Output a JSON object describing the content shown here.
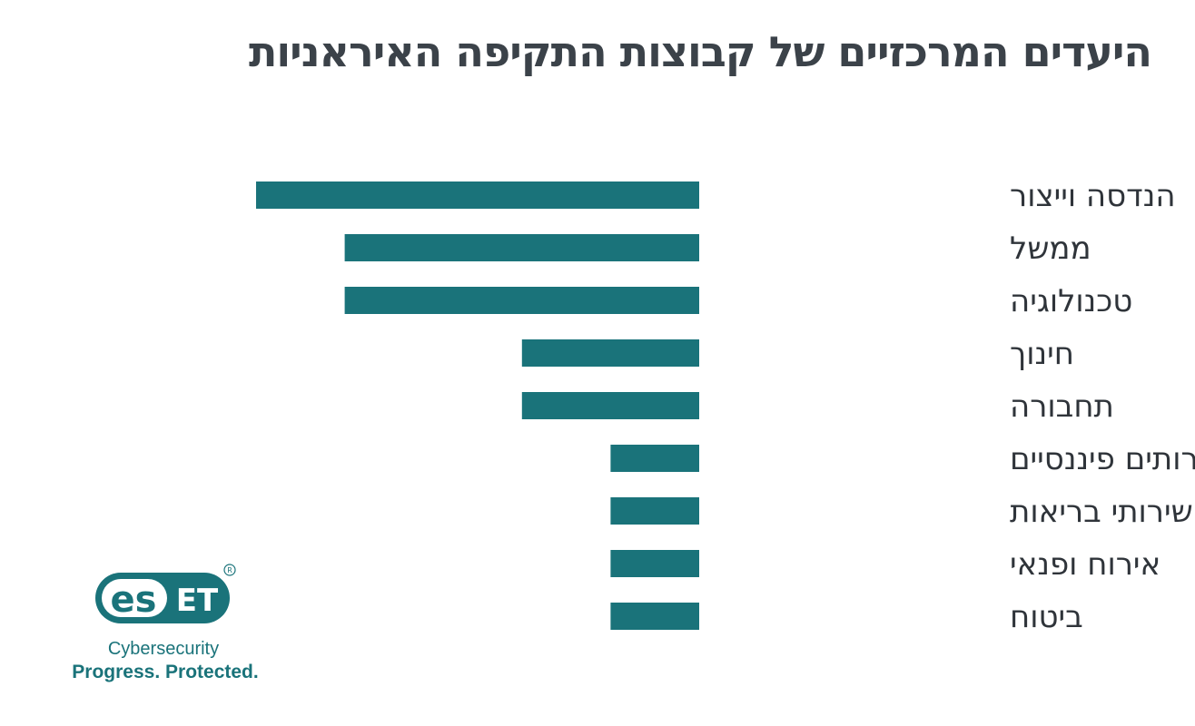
{
  "chart_data": {
    "type": "bar",
    "orientation": "horizontal",
    "title": "היעדים המרכזיים של קבוצות התקיפה האיראניות",
    "categories": [
      "הנדסה וייצור",
      "ממשל",
      "טכנולוגיה",
      "חינוך",
      "תחבורה",
      "שירותים פיננסיים",
      "שירותי בריאות",
      "אירוח ופנאי",
      "ביטוח"
    ],
    "values": [
      5,
      4,
      4,
      2,
      2,
      1,
      1,
      1,
      1
    ],
    "value_units": "relative (no axis printed)",
    "xlim": [
      0,
      5
    ],
    "grid": false,
    "bar_color": "#1a737a"
  },
  "logo": {
    "brand": "ESET",
    "registered": "®",
    "tagline1": "Cybersecurity",
    "tagline2": "Progress. Protected."
  }
}
